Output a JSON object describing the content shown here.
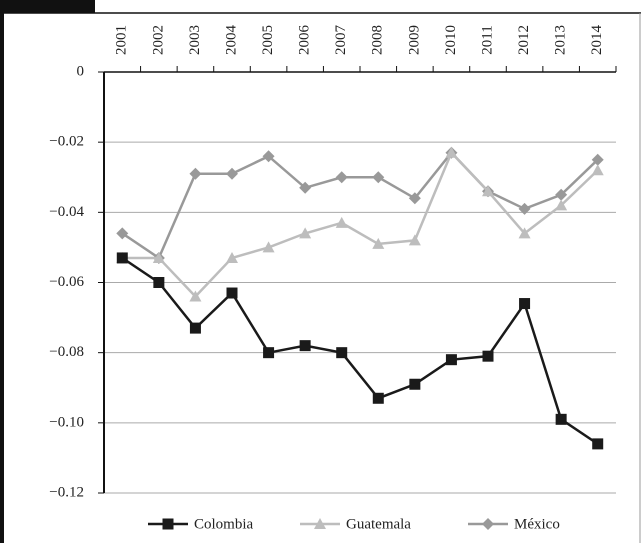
{
  "chart_data": {
    "type": "line",
    "categories": [
      "2001",
      "2002",
      "2003",
      "2004",
      "2005",
      "2006",
      "2007",
      "2008",
      "2009",
      "2010",
      "2011",
      "2012",
      "2013",
      "2014"
    ],
    "series": [
      {
        "name": "Colombia",
        "color": "#1a1a1a",
        "marker": "square",
        "values": [
          -0.053,
          -0.06,
          -0.073,
          -0.063,
          -0.08,
          -0.078,
          -0.08,
          -0.093,
          -0.089,
          -0.082,
          -0.081,
          -0.066,
          -0.099,
          -0.106
        ]
      },
      {
        "name": "Guatemala",
        "color": "#bdbdbd",
        "marker": "triangle",
        "values": [
          -0.053,
          -0.053,
          -0.064,
          -0.053,
          -0.05,
          -0.046,
          -0.043,
          -0.049,
          -0.048,
          -0.023,
          -0.034,
          -0.046,
          -0.038,
          -0.028
        ]
      },
      {
        "name": "México",
        "color": "#999999",
        "marker": "diamond",
        "values": [
          -0.046,
          -0.053,
          -0.029,
          -0.029,
          -0.024,
          -0.033,
          -0.03,
          -0.03,
          -0.036,
          -0.023,
          -0.034,
          -0.039,
          -0.035,
          -0.025
        ]
      }
    ],
    "ylim": [
      -0.12,
      0
    ],
    "yticks": [
      {
        "value": 0,
        "label": "0"
      },
      {
        "value": -0.02,
        "label": "−0.02"
      },
      {
        "value": -0.04,
        "label": "−0.04"
      },
      {
        "value": -0.06,
        "label": "−0.06"
      },
      {
        "value": -0.08,
        "label": "−0.08"
      },
      {
        "value": -0.1,
        "label": "−0.10"
      },
      {
        "value": -0.12,
        "label": "−0.12"
      }
    ],
    "grid": true,
    "legend": "bottom"
  }
}
